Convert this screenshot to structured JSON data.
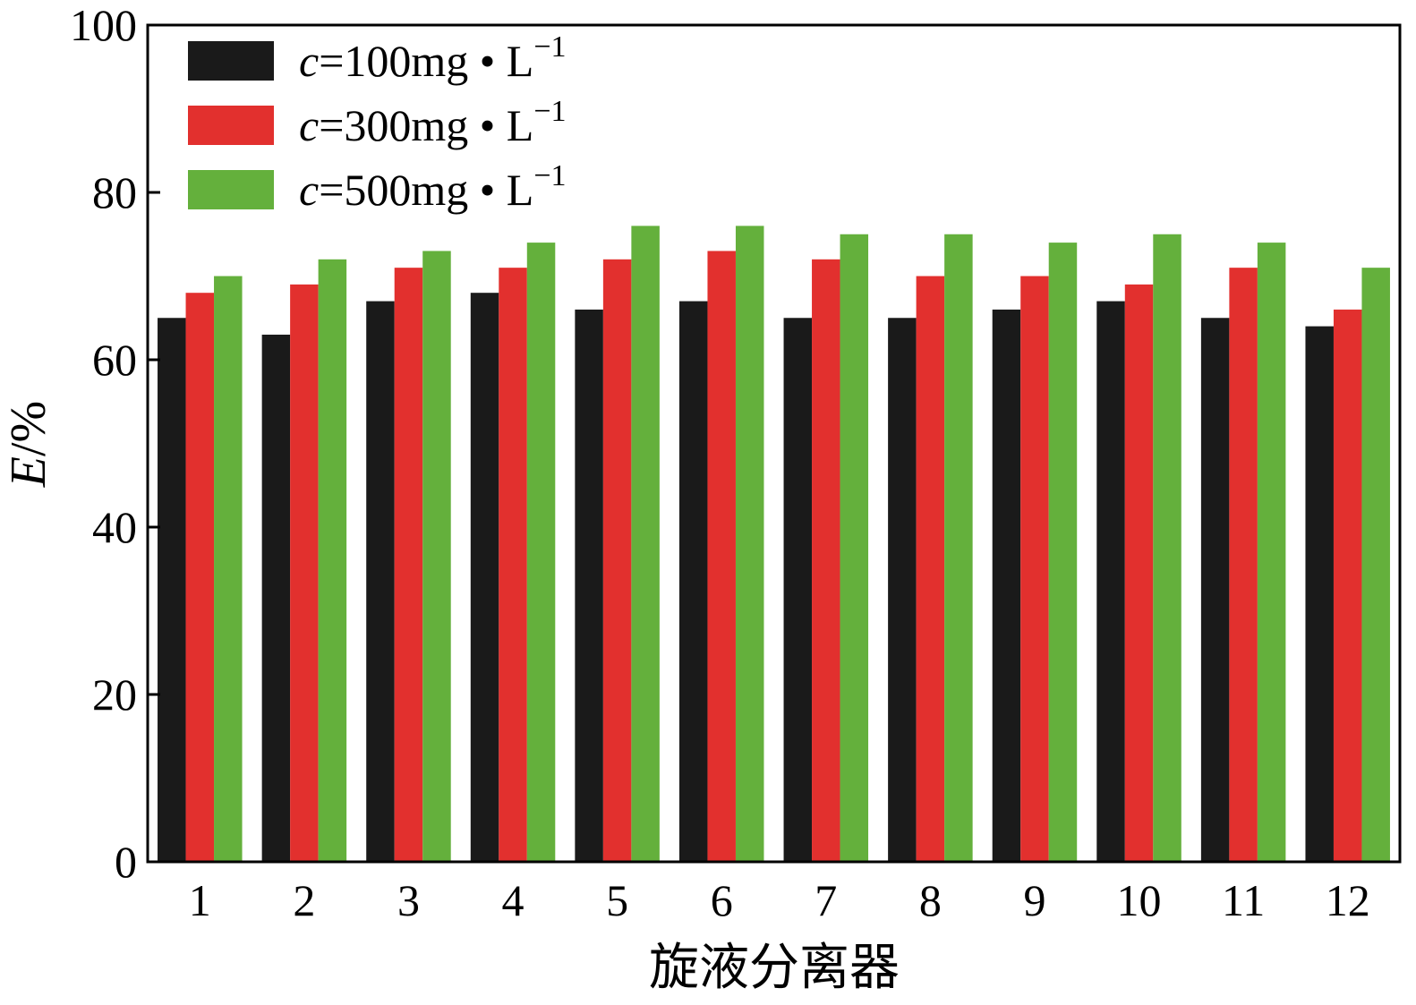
{
  "chart_data": {
    "type": "bar",
    "categories": [
      "1",
      "2",
      "3",
      "4",
      "5",
      "6",
      "7",
      "8",
      "9",
      "10",
      "11",
      "12"
    ],
    "series": [
      {
        "name": "c=100mg • L−1",
        "legend": {
          "italic": "c",
          "text": "=100mg • L",
          "sup": "−1"
        },
        "color": "#1a1a1a",
        "values": [
          65,
          63,
          67,
          68,
          66,
          67,
          65,
          65,
          66,
          67,
          65,
          64
        ]
      },
      {
        "name": "c=300mg • L−1",
        "legend": {
          "italic": "c",
          "text": "=300mg • L",
          "sup": "−1"
        },
        "color": "#e2302e",
        "values": [
          68,
          69,
          71,
          71,
          72,
          73,
          72,
          70,
          70,
          69,
          71,
          66
        ]
      },
      {
        "name": "c=500mg • L−1",
        "legend": {
          "italic": "c",
          "text": "=500mg • L",
          "sup": "−1"
        },
        "color": "#64b03c",
        "values": [
          70,
          72,
          73,
          74,
          76,
          76,
          75,
          75,
          74,
          75,
          74,
          71
        ]
      }
    ],
    "ylabel": {
      "italic": "E",
      "text": "/%"
    },
    "xlabel": "旋液分离器",
    "ylim": [
      0,
      100
    ],
    "yticks": [
      "0",
      "20",
      "40",
      "60",
      "80",
      "100"
    ],
    "legend_position": "top-left",
    "grid": false
  }
}
